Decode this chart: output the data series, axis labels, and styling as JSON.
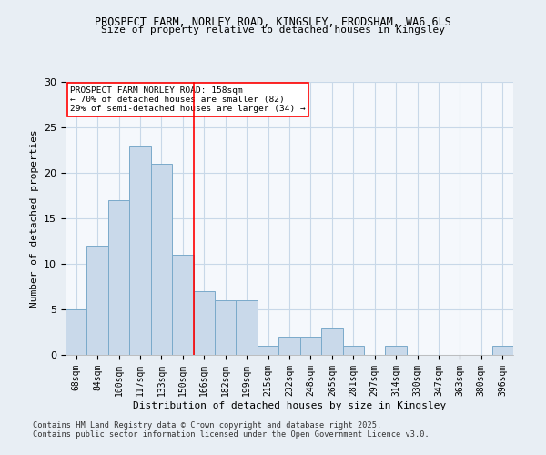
{
  "title_line1": "PROSPECT FARM, NORLEY ROAD, KINGSLEY, FRODSHAM, WA6 6LS",
  "title_line2": "Size of property relative to detached houses in Kingsley",
  "xlabel": "Distribution of detached houses by size in Kingsley",
  "ylabel": "Number of detached properties",
  "bar_labels": [
    "68sqm",
    "84sqm",
    "100sqm",
    "117sqm",
    "133sqm",
    "150sqm",
    "166sqm",
    "182sqm",
    "199sqm",
    "215sqm",
    "232sqm",
    "248sqm",
    "265sqm",
    "281sqm",
    "297sqm",
    "314sqm",
    "330sqm",
    "347sqm",
    "363sqm",
    "380sqm",
    "396sqm"
  ],
  "bar_values": [
    5,
    12,
    17,
    23,
    21,
    11,
    7,
    6,
    6,
    1,
    2,
    2,
    3,
    1,
    0,
    1,
    0,
    0,
    0,
    0,
    1
  ],
  "bar_color": "#c9d9ea",
  "bar_edgecolor": "#7aaaca",
  "bar_linewidth": 0.7,
  "vline_x": 5.5,
  "vline_color": "red",
  "vline_linewidth": 1.2,
  "ylim": [
    0,
    30
  ],
  "yticks": [
    0,
    5,
    10,
    15,
    20,
    25,
    30
  ],
  "annotation_title": "PROSPECT FARM NORLEY ROAD: 158sqm",
  "annotation_line2": "← 70% of detached houses are smaller (82)",
  "annotation_line3": "29% of semi-detached houses are larger (34) →",
  "footer_line1": "Contains HM Land Registry data © Crown copyright and database right 2025.",
  "footer_line2": "Contains public sector information licensed under the Open Government Licence v3.0.",
  "background_color": "#e8eef4",
  "plot_background_color": "#f5f8fc",
  "grid_color": "#c8d8e8"
}
